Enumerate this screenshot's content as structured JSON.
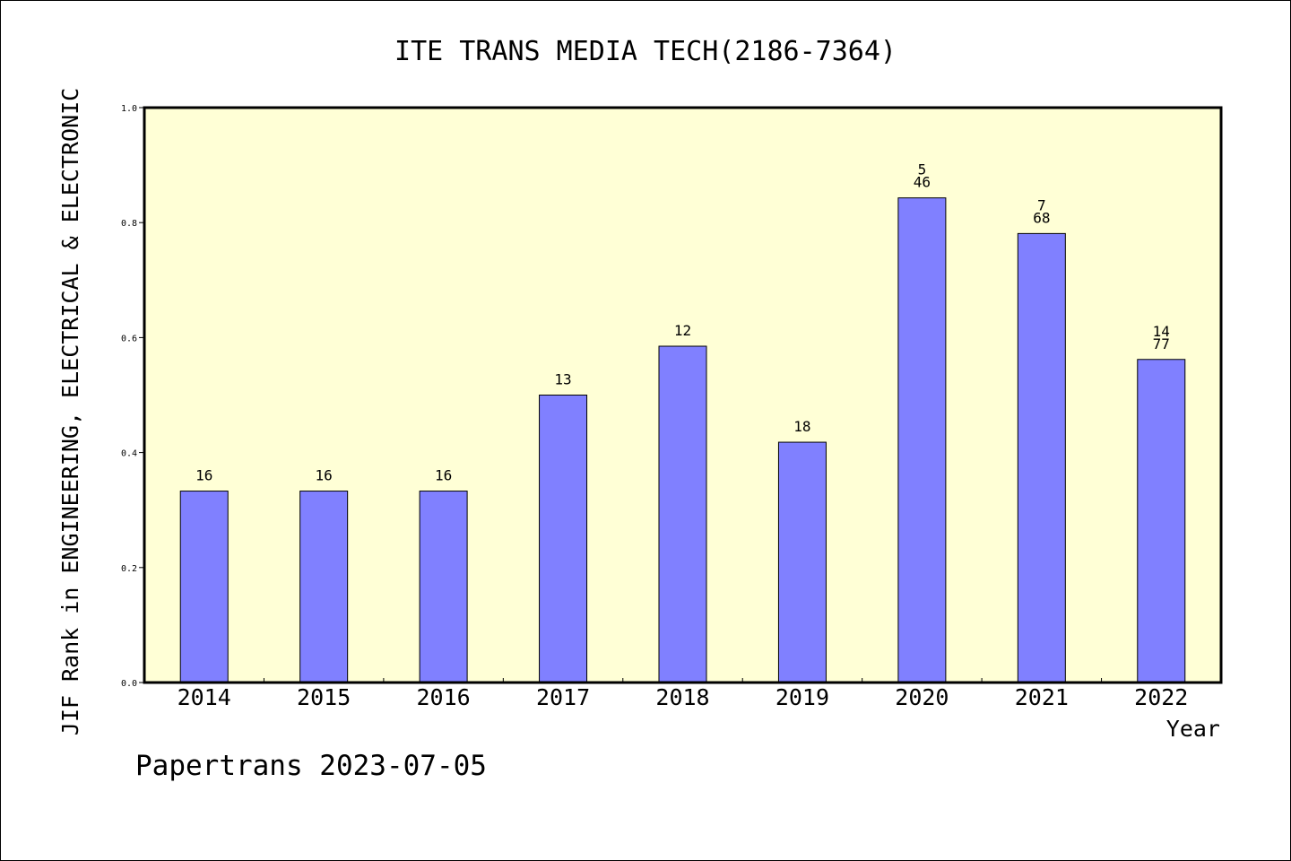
{
  "chart_data": {
    "type": "bar",
    "title": "ITE TRANS MEDIA TECH(2186-7364)",
    "xlabel": "Year",
    "ylabel": "JIF Rank in ENGINEERING, ELECTRICAL & ELECTRONIC",
    "ylim": [
      0,
      1.0
    ],
    "yticks": [
      "0.0",
      "0.2",
      "0.4",
      "0.6",
      "0.8",
      "1.0"
    ],
    "categories": [
      "2014",
      "2015",
      "2016",
      "2017",
      "2018",
      "2019",
      "2020",
      "2021",
      "2022"
    ],
    "values": [
      0.333,
      0.333,
      0.333,
      0.5,
      0.585,
      0.418,
      0.843,
      0.781,
      0.562
    ],
    "data_labels": [
      [
        "16"
      ],
      [
        "16"
      ],
      [
        "16"
      ],
      [
        "13"
      ],
      [
        "12"
      ],
      [
        "18"
      ],
      [
        "5",
        "46"
      ],
      [
        "7",
        "68"
      ],
      [
        "14",
        "77"
      ]
    ],
    "grid": false,
    "colors": {
      "bar_fill": "#8080ff",
      "bar_stroke": "#000000",
      "plot_background": "#ffffd6",
      "axis": "#000000"
    }
  },
  "footer": {
    "text": "Papertrans 2023-07-05"
  }
}
